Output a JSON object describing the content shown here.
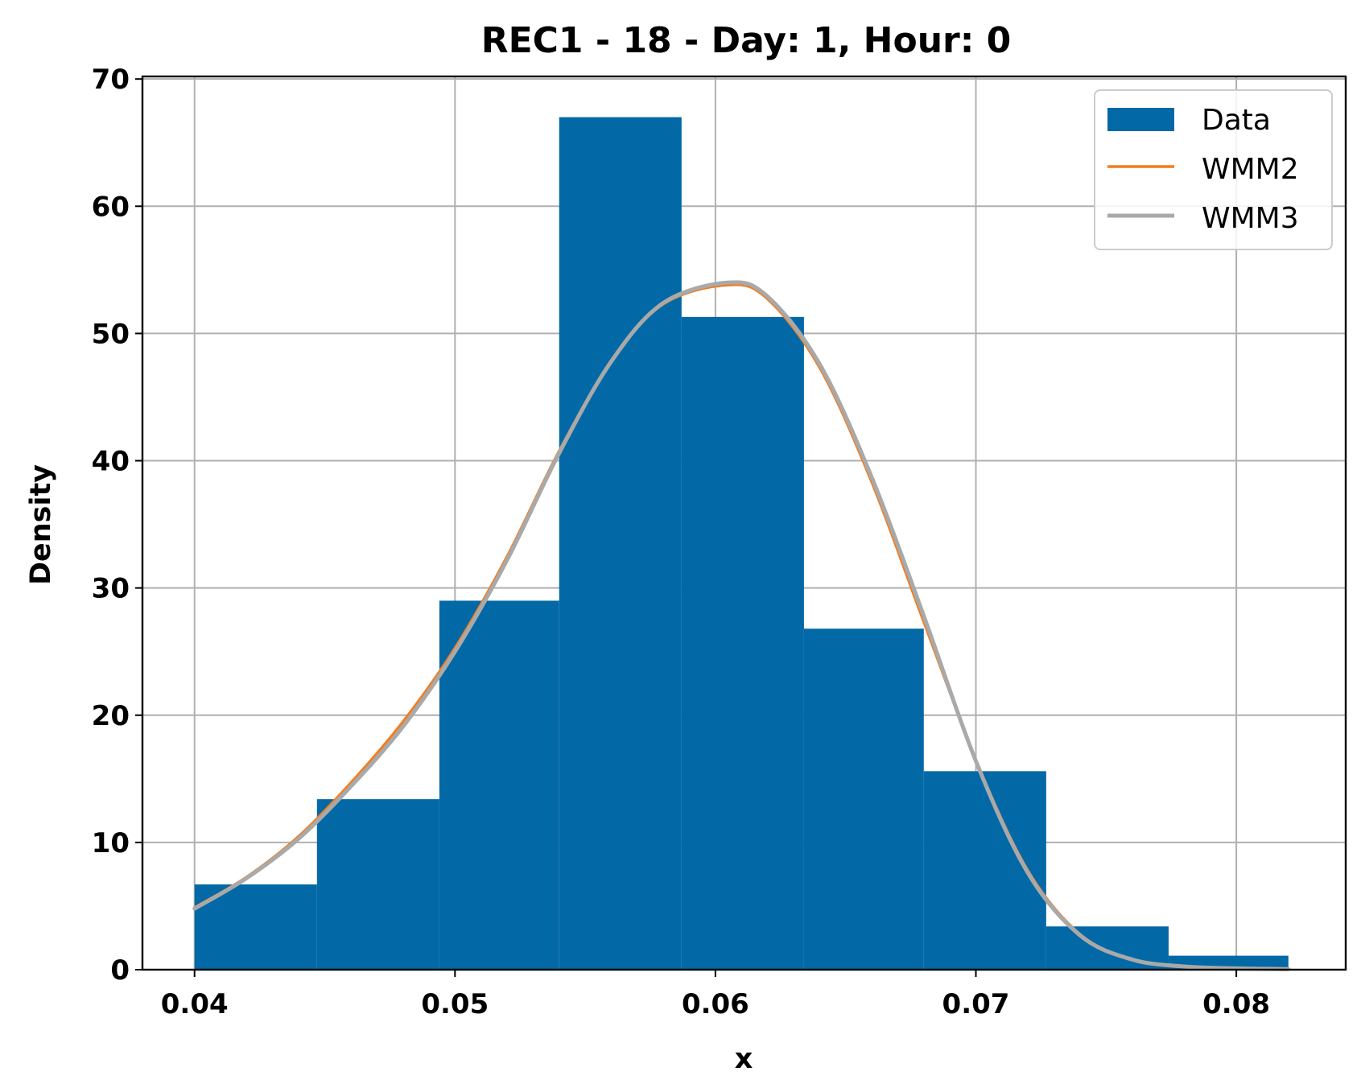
{
  "chart_data": {
    "type": "bar",
    "title": "REC1 - 18 - Day: 1, Hour: 0",
    "xlabel": "x",
    "ylabel": "Density",
    "xlim": [
      0.038,
      0.0842
    ],
    "ylim": [
      0,
      70.2
    ],
    "xticks": [
      0.04,
      0.05,
      0.06,
      0.07,
      0.08
    ],
    "xtick_labels": [
      "0.04",
      "0.05",
      "0.06",
      "0.07",
      "0.08"
    ],
    "yticks": [
      0,
      10,
      20,
      30,
      40,
      50,
      60,
      70
    ],
    "ytick_labels": [
      "0",
      "10",
      "20",
      "30",
      "40",
      "50",
      "60",
      "70"
    ],
    "grid": true,
    "legend_position": "top-right",
    "bins": [
      {
        "x0": 0.04,
        "x1": 0.0447,
        "value": 6.7
      },
      {
        "x0": 0.0447,
        "x1": 0.0494,
        "value": 13.4
      },
      {
        "x0": 0.0494,
        "x1": 0.054,
        "value": 29.0
      },
      {
        "x0": 0.054,
        "x1": 0.0587,
        "value": 67.0
      },
      {
        "x0": 0.0587,
        "x1": 0.0634,
        "value": 51.3
      },
      {
        "x0": 0.0634,
        "x1": 0.068,
        "value": 26.8
      },
      {
        "x0": 0.068,
        "x1": 0.0727,
        "value": 15.6
      },
      {
        "x0": 0.0727,
        "x1": 0.0774,
        "value": 3.4
      },
      {
        "x0": 0.0774,
        "x1": 0.082,
        "value": 1.1
      }
    ],
    "series": [
      {
        "name": "Data",
        "kind": "histogram",
        "color": "#0369a6"
      },
      {
        "name": "WMM2",
        "kind": "line",
        "color": "#f47c1c",
        "x": [
          0.04,
          0.042,
          0.044,
          0.046,
          0.048,
          0.05,
          0.052,
          0.054,
          0.056,
          0.058,
          0.0605,
          0.062,
          0.064,
          0.066,
          0.068,
          0.07,
          0.072,
          0.074,
          0.076,
          0.078,
          0.08,
          0.082
        ],
        "y": [
          4.9,
          7.3,
          10.5,
          14.7,
          19.5,
          25.3,
          32.5,
          40.8,
          47.8,
          52.3,
          53.8,
          52.7,
          47.3,
          38.3,
          27.3,
          16.5,
          7.8,
          2.8,
          0.8,
          0.25,
          0.1,
          0.05
        ]
      },
      {
        "name": "WMM3",
        "kind": "line",
        "color": "#a9a9a9",
        "x": [
          0.04,
          0.042,
          0.044,
          0.046,
          0.048,
          0.05,
          0.052,
          0.054,
          0.056,
          0.058,
          0.0605,
          0.062,
          0.064,
          0.066,
          0.068,
          0.07,
          0.072,
          0.074,
          0.076,
          0.078,
          0.08,
          0.082
        ],
        "y": [
          4.8,
          7.2,
          10.3,
          14.4,
          19.1,
          25.0,
          32.2,
          40.6,
          47.8,
          52.4,
          54.0,
          52.9,
          47.6,
          38.7,
          27.8,
          16.4,
          7.6,
          2.7,
          0.8,
          0.25,
          0.1,
          0.05
        ]
      }
    ]
  }
}
